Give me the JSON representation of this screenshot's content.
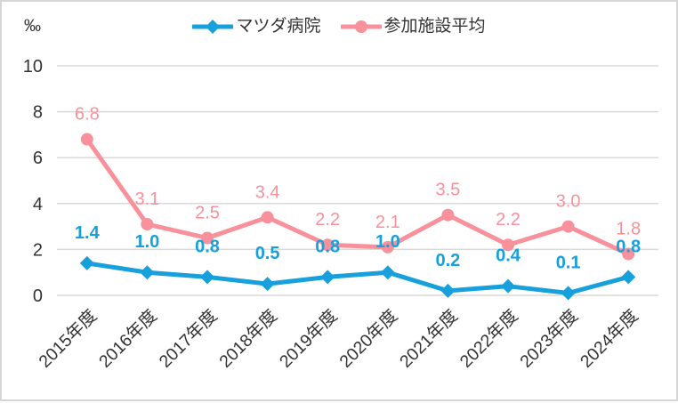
{
  "chart_data": {
    "type": "line",
    "title": "",
    "categories": [
      "2015年度",
      "2016年度",
      "2017年度",
      "2018年度",
      "2019年度",
      "2020年度",
      "2021年度",
      "2022年度",
      "2023年度",
      "2024年度"
    ],
    "series": [
      {
        "name": "マツダ病院",
        "color": "#17A0DB",
        "marker": "diamond",
        "label_style": "bold",
        "values": [
          1.4,
          1.0,
          0.8,
          0.5,
          0.8,
          1.0,
          0.2,
          0.4,
          0.1,
          0.8
        ]
      },
      {
        "name": "参加施設平均",
        "color": "#F8919B",
        "marker": "circle",
        "label_style": "normal",
        "values": [
          6.8,
          3.1,
          2.5,
          3.4,
          2.2,
          2.1,
          3.5,
          2.2,
          3.0,
          1.8
        ]
      }
    ],
    "xlabel": "",
    "ylabel": "‰",
    "ylim": [
      0,
      10
    ],
    "yticks": [
      0,
      2,
      4,
      6,
      8,
      10
    ],
    "grid": true,
    "data_labels": true,
    "legend_position": "top"
  },
  "style": {
    "grid_color": "#D9D9D9",
    "axis_text_color": "#333333",
    "background": "#FFFFFF",
    "border_color": "#D6D6D6"
  }
}
